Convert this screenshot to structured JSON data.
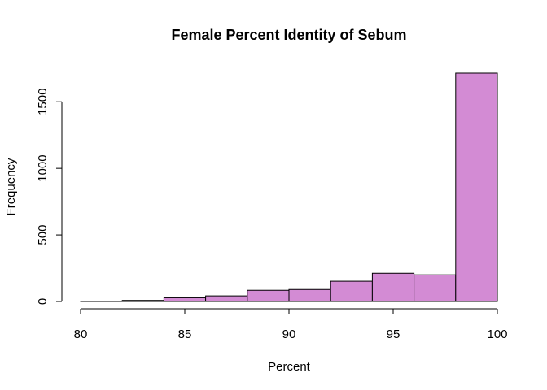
{
  "chart_data": {
    "type": "bar",
    "title": "Female Percent Identity of Sebum",
    "xlabel": "Percent",
    "ylabel": "Frequency",
    "bins": [
      {
        "start": 80,
        "end": 82,
        "count": 2
      },
      {
        "start": 82,
        "end": 84,
        "count": 8
      },
      {
        "start": 84,
        "end": 86,
        "count": 28
      },
      {
        "start": 86,
        "end": 88,
        "count": 42
      },
      {
        "start": 88,
        "end": 90,
        "count": 84
      },
      {
        "start": 90,
        "end": 92,
        "count": 90
      },
      {
        "start": 92,
        "end": 94,
        "count": 152
      },
      {
        "start": 94,
        "end": 96,
        "count": 212
      },
      {
        "start": 96,
        "end": 98,
        "count": 200
      },
      {
        "start": 98,
        "end": 100,
        "count": 1715
      }
    ],
    "xlim": [
      80,
      100
    ],
    "ylim": [
      0,
      1715
    ],
    "x_ticks": [
      80,
      85,
      90,
      95,
      100
    ],
    "y_ticks": [
      0,
      500,
      1000,
      1500
    ],
    "bar_color": "#d38bd4",
    "grid": false
  }
}
